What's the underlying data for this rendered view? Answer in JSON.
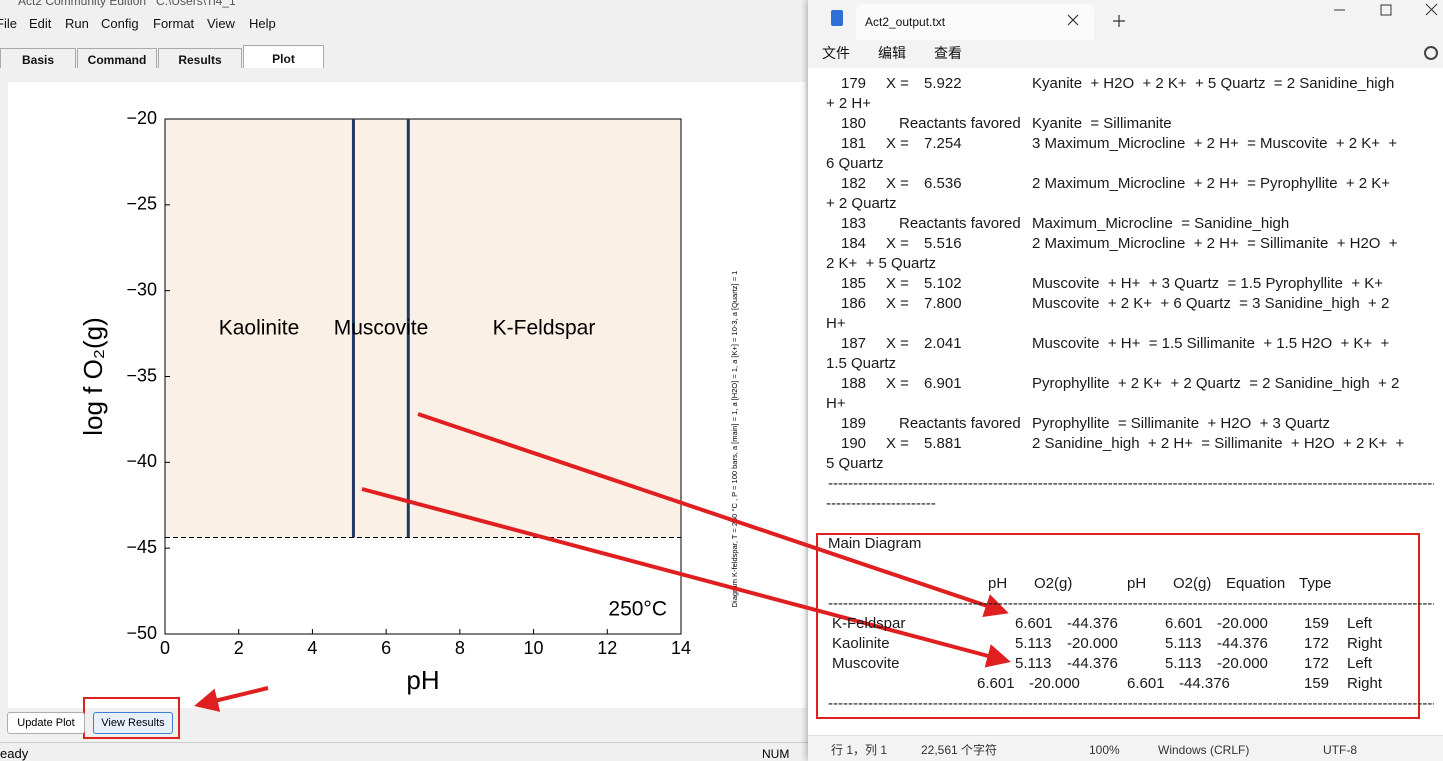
{
  "left_window": {
    "title": "Act2 Community Edition   C:\\Users\\Ti4_1",
    "menu": [
      "File",
      "Edit",
      "Run",
      "Config",
      "Format",
      "View",
      "Help"
    ],
    "tabs": [
      "Basis",
      "Command",
      "Results",
      "Plot"
    ],
    "buttons": [
      "Update Plot",
      "View Results"
    ],
    "status": [
      "eady",
      "NUM"
    ]
  },
  "chart_data": {
    "type": "line",
    "xlabel": "pH",
    "ylabel": "log f O₂(g)",
    "xlim": [
      0,
      14
    ],
    "ylim": [
      -50,
      -20
    ],
    "xticks": [
      0,
      2,
      4,
      6,
      8,
      10,
      12,
      14
    ],
    "yticks": [
      {
        "value": -20,
        "label": "−20"
      },
      {
        "value": -25,
        "label": "−25"
      },
      {
        "value": -30,
        "label": "−30"
      },
      {
        "value": -35,
        "label": "−35"
      },
      {
        "value": -40,
        "label": "−40"
      },
      {
        "value": -45,
        "label": "−45"
      },
      {
        "value": -50,
        "label": "−50"
      }
    ],
    "series": [
      {
        "x": [
          5.113,
          5.113
        ],
        "values": [
          -20,
          -44.376
        ],
        "color": "#22395e"
      },
      {
        "x": [
          6.601,
          6.601
        ],
        "values": [
          -20,
          -44.376
        ],
        "color": "#22395e"
      },
      {
        "x": [
          0,
          14
        ],
        "values": [
          -44.376,
          -44.376
        ],
        "color": "#000000",
        "dash": true
      }
    ],
    "fill_color": "#fbf0e6",
    "fields": [
      "Kaolinite",
      "Muscovite",
      "K-Feldspar"
    ],
    "temperature": "250°C",
    "note": "Diagram K-feldspar, T = 250 °C , P = 100 bars, a [main] = 1, a [H2O] = 1, a [K+] = 10-3, a [Quartz] = 1"
  },
  "notepad": {
    "tab": "Act2_output.txt",
    "menu": [
      "文件",
      "编辑",
      "查看"
    ],
    "lines": [
      {
        "n": "179",
        "label": "X =",
        "value": "5.922",
        "eq": "Kyanite  + H2O  + 2 K+  + 5 Quartz  = 2 Sanidine_high"
      },
      {
        "text": "+ 2 H+"
      },
      {
        "n": "180",
        "note": "Reactants favored",
        "eq": "Kyanite  = Sillimanite"
      },
      {
        "n": "181",
        "label": "X =",
        "value": "7.254",
        "eq": "3 Maximum_Microcline  + 2 H+  = Muscovite  + 2 K+  +"
      },
      {
        "text": "6 Quartz"
      },
      {
        "n": "182",
        "label": "X =",
        "value": "6.536",
        "eq": "2 Maximum_Microcline  + 2 H+  = Pyrophyllite  + 2 K+"
      },
      {
        "text": "+ 2 Quartz"
      },
      {
        "n": "183",
        "note": "Reactants favored",
        "eq": "Maximum_Microcline  = Sanidine_high"
      },
      {
        "n": "184",
        "label": "X =",
        "value": "5.516",
        "eq": "2 Maximum_Microcline  + 2 H+  = Sillimanite  + H2O  +"
      },
      {
        "text": "2 K+  + 5 Quartz"
      },
      {
        "n": "185",
        "label": "X =",
        "value": "5.102",
        "eq": "Muscovite  + H+  + 3 Quartz  = 1.5 Pyrophyllite  + K+"
      },
      {
        "n": "186",
        "label": "X =",
        "value": "7.800",
        "eq": "Muscovite  + 2 K+  + 6 Quartz  = 3 Sanidine_high  + 2"
      },
      {
        "text": "H+"
      },
      {
        "n": "187",
        "label": "X =",
        "value": "2.041",
        "eq": "Muscovite  + H+  = 1.5 Sillimanite  + 1.5 H2O  + K+  +"
      },
      {
        "text": "1.5 Quartz"
      },
      {
        "n": "188",
        "label": "X =",
        "value": "6.901",
        "eq": "Pyrophyllite  + 2 K+  + 2 Quartz  = 2 Sanidine_high  + 2"
      },
      {
        "text": "H+"
      },
      {
        "n": "189",
        "note": "Reactants favored",
        "eq": "Pyrophyllite  = Sillimanite  + H2O  + 3 Quartz"
      },
      {
        "n": "190",
        "label": "X =",
        "value": "5.881",
        "eq": "2 Sanidine_high  + 2 H+  = Sillimanite  + H2O  + 2 K+  +"
      },
      {
        "text": "5 Quartz"
      }
    ],
    "rule": "------------------------------------------------------------------------------------------------------------------------------------------------------",
    "rule_wrap": "----------------------",
    "main_diagram": {
      "title": "Main Diagram",
      "header": [
        "pH",
        "O2(g)",
        "pH",
        "O2(g)",
        "Equation",
        "Type"
      ],
      "rows": [
        {
          "name": "K-Feldspar",
          "cells": [
            "6.601",
            "-44.376",
            "6.601",
            "-20.000",
            "159",
            "Left"
          ]
        },
        {
          "name": "Kaolinite",
          "cells": [
            "5.113",
            "-20.000",
            "5.113",
            "-44.376",
            "172",
            "Right"
          ]
        },
        {
          "name": "Muscovite",
          "cells": [
            "5.113",
            "-44.376",
            "5.113",
            "-20.000",
            "172",
            "Left"
          ]
        },
        {
          "cells": [
            "6.601",
            "-20.000",
            "6.601",
            "-44.376",
            "159",
            "Right"
          ]
        }
      ]
    },
    "status": [
      "行 1，列 1",
      "22,561 个字符",
      "100%",
      "Windows (CRLF)",
      "UTF-8"
    ]
  }
}
